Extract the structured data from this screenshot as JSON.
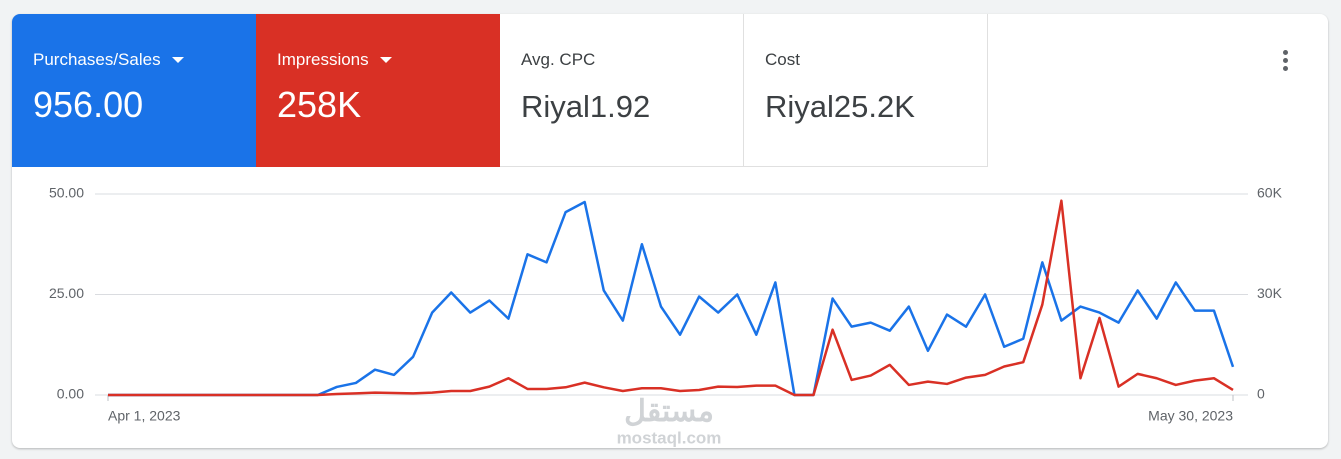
{
  "metrics": [
    {
      "label": "Purchases/Sales",
      "value": "956.00"
    },
    {
      "label": "Impressions",
      "value": "258K"
    },
    {
      "label": "Avg. CPC",
      "value": "Riyal1.92"
    },
    {
      "label": "Cost",
      "value": "Riyal25.2K"
    }
  ],
  "chart_data": {
    "type": "line",
    "categories": [
      "Apr 1, 2023",
      null,
      null,
      null,
      null,
      null,
      null,
      null,
      null,
      null,
      null,
      null,
      null,
      null,
      null,
      null,
      null,
      null,
      null,
      null,
      null,
      null,
      null,
      null,
      null,
      null,
      null,
      null,
      null,
      null,
      null,
      null,
      null,
      null,
      null,
      null,
      null,
      null,
      null,
      null,
      null,
      null,
      null,
      null,
      null,
      null,
      null,
      null,
      null,
      null,
      null,
      null,
      null,
      null,
      null,
      null,
      null,
      null,
      null,
      "May 30, 2023"
    ],
    "series": [
      {
        "color": "#1a73e8",
        "values": [
          0,
          0,
          0,
          0,
          0,
          0,
          0,
          0,
          0,
          0,
          0,
          0,
          2,
          3,
          6.3,
          5,
          9.5,
          20.5,
          25.5,
          20.5,
          23.5,
          19,
          35,
          33,
          45.5,
          48,
          26,
          18.5,
          37.5,
          22,
          15,
          24.5,
          20.5,
          25,
          15,
          28,
          0,
          0,
          24,
          17,
          18,
          16,
          22,
          11,
          20,
          17,
          25,
          12,
          14,
          33,
          18.5,
          22,
          20.5,
          18,
          26,
          19,
          28,
          21,
          21,
          7
        ]
      },
      {
        "color": "#d93025",
        "axis": "y2",
        "values": [
          0,
          0,
          0,
          0,
          0,
          0,
          0,
          0,
          0,
          0,
          0,
          0,
          300,
          500,
          700,
          600,
          500,
          700,
          1200,
          1200,
          2500,
          5000,
          1800,
          1800,
          2300,
          3700,
          2300,
          1200,
          2000,
          2000,
          1200,
          1500,
          2500,
          2400,
          2800,
          2800,
          0,
          0,
          19500,
          4500,
          5800,
          9000,
          3000,
          4000,
          3300,
          5200,
          6000,
          8500,
          9800,
          27000,
          58000,
          5000,
          23000,
          2500,
          6300,
          5000,
          3000,
          4300,
          5000,
          1500
        ]
      }
    ],
    "ylim": [
      0,
      50
    ],
    "yticks": [
      {
        "value": 0,
        "label": "0.00"
      },
      {
        "value": 25,
        "label": "25.00"
      },
      {
        "value": 50,
        "label": "50.00"
      }
    ],
    "y2lim": [
      0,
      60000
    ],
    "y2ticks": [
      0,
      {
        "value": 30000,
        "label": "30K"
      },
      {
        "value": 60000,
        "label": "60K"
      }
    ],
    "grid": true
  },
  "watermark": {
    "arabic": "مستقل",
    "latin": "mostaql.com"
  }
}
